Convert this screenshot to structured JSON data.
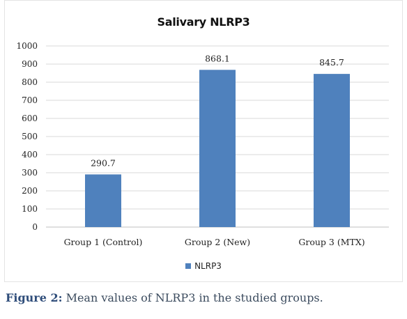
{
  "chart_data": {
    "type": "bar",
    "title": "Salivary NLRP3",
    "categories": [
      "Group 1 (Control)",
      "Group 2 (New)",
      "Group 3 (MTX)"
    ],
    "series": [
      {
        "name": "NLRP3",
        "values": [
          290.7,
          868.1,
          845.7
        ],
        "color": "#4f81bd"
      }
    ],
    "data_labels": [
      "290.7",
      "868.1",
      "845.7"
    ],
    "ylim": [
      0,
      1000
    ],
    "yticks": [
      0,
      100,
      200,
      300,
      400,
      500,
      600,
      700,
      800,
      900,
      1000
    ],
    "grid": true,
    "legend_position": "bottom"
  },
  "caption": {
    "label": "Figure 2:",
    "text": " Mean values of NLRP3 in the studied groups."
  }
}
